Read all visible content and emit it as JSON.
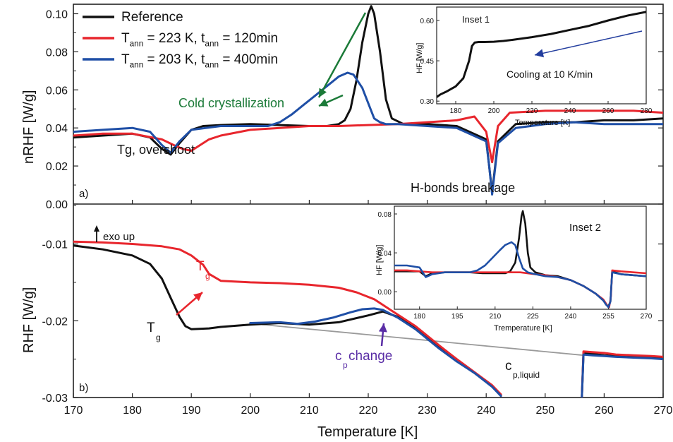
{
  "chart_data": [
    {
      "panel_label": "a)",
      "type": "line",
      "ylabel": "nRHF [W/g]",
      "xlim": [
        170,
        270
      ],
      "ylim": [
        0.0,
        0.105
      ],
      "yticks": [
        "0.00",
        "0.02",
        "0.04",
        "0.06",
        "0.08",
        "0.10"
      ],
      "colors": {
        "Reference": "#111111",
        "red": "#e8262d",
        "blue": "#1f4fa6"
      },
      "legend": {
        "position": "top-left",
        "entries": [
          {
            "color": "#111111",
            "parts": [
              [
                "Reference",
                ""
              ]
            ]
          },
          {
            "color": "#e8262d",
            "parts": [
              [
                "T",
                ""
              ],
              [
                "ann",
                "sub"
              ],
              [
                " = 223 K, t",
                ""
              ],
              [
                "ann",
                "sub"
              ],
              [
                " = 120min",
                ""
              ]
            ]
          },
          {
            "color": "#1f4fa6",
            "parts": [
              [
                "T",
                ""
              ],
              [
                "ann",
                "sub"
              ],
              [
                " = 203 K, t",
                ""
              ],
              [
                "ann",
                "sub"
              ],
              [
                " = 400min",
                ""
              ]
            ]
          }
        ]
      },
      "annotations": {
        "cold": "Cold crystallization",
        "tg_overshoot": "Tg, overshoot",
        "hbonds": "H-bonds breakage"
      },
      "series": [
        {
          "name": "Reference",
          "color": "#111111",
          "x": [
            170,
            175,
            180,
            183,
            185,
            186.5,
            188,
            190,
            192,
            195,
            200,
            205,
            210,
            213,
            215,
            216,
            217,
            218,
            219,
            220,
            220.5,
            221,
            222,
            223,
            224,
            226,
            230,
            235,
            240,
            240.5,
            241,
            242,
            245,
            250,
            255,
            260,
            265,
            270
          ],
          "y": [
            0.035,
            0.036,
            0.037,
            0.035,
            0.029,
            0.026,
            0.032,
            0.039,
            0.041,
            0.0415,
            0.042,
            0.0415,
            0.041,
            0.041,
            0.042,
            0.044,
            0.05,
            0.065,
            0.085,
            0.1,
            0.104,
            0.1,
            0.08,
            0.055,
            0.045,
            0.042,
            0.042,
            0.041,
            0.034,
            0.02,
            0.006,
            0.033,
            0.042,
            0.043,
            0.043,
            0.044,
            0.044,
            0.045
          ]
        },
        {
          "name": "T_ann = 223 K, t_ann = 120min",
          "color": "#e8262d",
          "x": [
            170,
            175,
            180,
            185,
            187,
            188.5,
            190,
            193,
            195,
            200,
            205,
            210,
            215,
            220,
            225,
            230,
            235,
            238,
            240,
            241,
            242,
            244,
            250,
            255,
            260,
            265,
            270
          ],
          "y": [
            0.036,
            0.037,
            0.037,
            0.034,
            0.031,
            0.029,
            0.028,
            0.034,
            0.036,
            0.039,
            0.04,
            0.041,
            0.041,
            0.0415,
            0.042,
            0.043,
            0.044,
            0.046,
            0.038,
            0.022,
            0.041,
            0.048,
            0.049,
            0.049,
            0.049,
            0.049,
            0.048
          ]
        },
        {
          "name": "T_ann = 203 K, t_ann = 400min",
          "color": "#1f4fa6",
          "x": [
            170,
            175,
            180,
            183,
            185,
            186.5,
            188,
            190,
            195,
            200,
            203,
            205,
            207,
            209,
            211,
            213,
            215,
            216.5,
            217.5,
            219,
            220,
            221,
            222,
            223,
            225,
            230,
            235,
            240,
            240.5,
            241,
            242,
            245,
            250,
            255,
            260,
            265,
            270
          ],
          "y": [
            0.038,
            0.039,
            0.04,
            0.038,
            0.031,
            0.027,
            0.033,
            0.039,
            0.041,
            0.041,
            0.041,
            0.043,
            0.047,
            0.052,
            0.057,
            0.062,
            0.067,
            0.069,
            0.068,
            0.061,
            0.053,
            0.045,
            0.043,
            0.042,
            0.042,
            0.041,
            0.04,
            0.033,
            0.02,
            0.005,
            0.032,
            0.04,
            0.042,
            0.043,
            0.042,
            0.042,
            0.042
          ]
        }
      ]
    },
    {
      "panel_label": "b)",
      "type": "line",
      "xlabel": "Temperature [K]",
      "ylabel": "RHF [W/g]",
      "xlim": [
        170,
        270
      ],
      "ylim": [
        -0.03,
        -0.0048
      ],
      "xticks": [
        "170",
        "180",
        "190",
        "200",
        "210",
        "220",
        "230",
        "240",
        "250",
        "260",
        "270"
      ],
      "yticks": [
        "-0.03",
        "-0.02",
        "-0.01"
      ],
      "annotations": {
        "exo": "exo up",
        "tg_red": "T",
        "tg_red_sub": "g",
        "tg_black": "T",
        "tg_black_sub": "g",
        "cp_main": "c",
        "cp_sub": "p",
        "cp_rest": " change",
        "cpl_main": "c",
        "cpl_sub": "p,liquid"
      },
      "baseline": {
        "x": [
          202,
          256.5
        ],
        "y": [
          -0.0205,
          -0.0245
        ]
      },
      "series": [
        {
          "name": "Reference",
          "color": "#111111",
          "x": [
            170,
            175,
            180,
            183,
            185,
            186.5,
            188,
            189,
            190,
            193,
            195,
            200,
            205,
            210,
            215,
            220,
            222.5,
            225,
            228,
            232,
            235,
            238,
            241,
            242.5
          ],
          "y": [
            -0.0102,
            -0.0107,
            -0.0115,
            -0.0126,
            -0.0145,
            -0.017,
            -0.0195,
            -0.0207,
            -0.0211,
            -0.021,
            -0.0208,
            -0.0205,
            -0.0203,
            -0.0205,
            -0.0202,
            -0.0193,
            -0.0188,
            -0.0195,
            -0.021,
            -0.0235,
            -0.0252,
            -0.0268,
            -0.0285,
            -0.0298
          ]
        },
        {
          "name": "T_ann = 223 K, t_ann = 120min",
          "color": "#e8262d",
          "x": [
            170,
            175,
            180,
            185,
            188,
            190,
            192,
            193,
            195,
            200,
            205,
            210,
            215,
            218,
            221,
            224,
            228,
            232,
            235,
            238,
            241,
            242.5
          ],
          "y": [
            -0.0097,
            -0.0098,
            -0.01,
            -0.0103,
            -0.0107,
            -0.0115,
            -0.0127,
            -0.0139,
            -0.0148,
            -0.015,
            -0.0151,
            -0.0153,
            -0.0157,
            -0.0163,
            -0.0172,
            -0.0187,
            -0.0207,
            -0.0232,
            -0.025,
            -0.0267,
            -0.0284,
            -0.0296
          ]
        },
        {
          "name": "T_ann = 203 K, t_ann = 400min",
          "color": "#1f4fa6",
          "x": [
            200,
            205,
            208,
            211,
            214,
            217,
            219,
            221,
            222.5,
            225,
            228,
            232,
            235,
            238,
            241,
            242.5
          ],
          "y": [
            -0.0203,
            -0.0202,
            -0.0204,
            -0.0201,
            -0.0196,
            -0.0189,
            -0.0185,
            -0.0184,
            -0.0186,
            -0.0196,
            -0.0211,
            -0.0236,
            -0.0253,
            -0.0268,
            -0.0286,
            -0.0298
          ]
        },
        {
          "name": "Reference (liquid)",
          "color": "#111111",
          "x": [
            256.2,
            256.5,
            258,
            260,
            262,
            265,
            268,
            270
          ],
          "y": [
            -0.0305,
            -0.0242,
            -0.0243,
            -0.0245,
            -0.0246,
            -0.0247,
            -0.0248,
            -0.0249
          ]
        },
        {
          "name": "T_ann = 223 K (liquid)",
          "color": "#e8262d",
          "x": [
            256.2,
            256.5,
            258,
            260,
            262,
            265,
            268,
            270
          ],
          "y": [
            -0.0305,
            -0.024,
            -0.0241,
            -0.0242,
            -0.0244,
            -0.0245,
            -0.0246,
            -0.0247
          ]
        },
        {
          "name": "T_ann = 203 K (liquid)",
          "color": "#1f4fa6",
          "x": [
            256.2,
            256.5,
            258,
            260,
            262,
            265,
            268,
            270
          ],
          "y": [
            -0.0305,
            -0.0244,
            -0.0245,
            -0.0246,
            -0.0247,
            -0.0248,
            -0.0249,
            -0.025
          ]
        }
      ]
    },
    {
      "panel_label": "Inset 1",
      "type": "line",
      "title": "Inset 1",
      "xlabel": "Temperature [K]",
      "ylabel": "HF [W/g]",
      "xlim": [
        170,
        280
      ],
      "ylim": [
        0.29,
        0.65
      ],
      "xticks": [
        "180",
        "200",
        "220",
        "240",
        "260",
        "280"
      ],
      "yticks": [
        "0.30",
        "0.45",
        "0.60"
      ],
      "annotation": "Cooling at 10 K/min",
      "series": [
        {
          "name": "Reference",
          "color": "#111111",
          "x": [
            170,
            172,
            175,
            180,
            184,
            187,
            188.5,
            190,
            192,
            195,
            200,
            205,
            210,
            220,
            230,
            240,
            250,
            260,
            270,
            280
          ],
          "y": [
            0.315,
            0.325,
            0.335,
            0.355,
            0.385,
            0.45,
            0.505,
            0.518,
            0.52,
            0.52,
            0.521,
            0.524,
            0.528,
            0.538,
            0.55,
            0.565,
            0.58,
            0.6,
            0.618,
            0.632
          ]
        }
      ]
    },
    {
      "panel_label": "Inset 2",
      "type": "line",
      "title": "Inset 2",
      "xlabel": "Tremperature [K]",
      "ylabel": "HF [W/g]",
      "xlim": [
        170,
        270
      ],
      "ylim": [
        -0.018,
        0.088
      ],
      "xticks": [
        "180",
        "195",
        "210",
        "225",
        "240",
        "255",
        "270"
      ],
      "yticks": [
        "0.00",
        "0.04",
        "0.08"
      ],
      "series": [
        {
          "name": "Reference",
          "color": "#111111",
          "x": [
            170,
            175,
            180,
            182.5,
            185,
            190,
            195,
            200,
            205,
            210,
            214,
            216,
            218,
            219.5,
            220.5,
            221,
            222,
            223,
            224,
            226,
            230,
            235,
            240,
            245,
            250,
            253,
            254,
            255,
            255.8,
            256.5,
            260,
            265,
            270
          ],
          "y": [
            0.021,
            0.021,
            0.021,
            0.016,
            0.019,
            0.02,
            0.02,
            0.02,
            0.019,
            0.019,
            0.019,
            0.021,
            0.03,
            0.055,
            0.078,
            0.083,
            0.07,
            0.04,
            0.025,
            0.02,
            0.017,
            0.016,
            0.012,
            0.006,
            -0.002,
            -0.009,
            -0.013,
            -0.015,
            -0.01,
            0.021,
            0.018,
            0.017,
            0.016
          ]
        },
        {
          "name": "T_ann = 223 K, t_ann = 120min",
          "color": "#e8262d",
          "x": [
            170,
            175,
            180,
            185,
            190,
            200,
            210,
            220,
            226,
            230,
            235,
            240,
            245,
            250,
            253,
            254.5,
            255.3,
            256,
            256.5,
            260,
            265,
            270
          ],
          "y": [
            0.022,
            0.022,
            0.021,
            0.02,
            0.02,
            0.02,
            0.02,
            0.02,
            0.018,
            0.017,
            0.015,
            0.012,
            0.006,
            -0.002,
            -0.008,
            -0.014,
            -0.016,
            -0.005,
            0.022,
            0.021,
            0.02,
            0.019
          ]
        },
        {
          "name": "T_ann = 203 K, t_ann = 400min",
          "color": "#1f4fa6",
          "x": [
            170,
            175,
            180,
            182.5,
            185,
            190,
            195,
            200,
            203,
            206,
            209,
            212,
            214,
            216.5,
            218,
            219.5,
            221,
            223,
            226,
            230,
            235,
            240,
            245,
            250,
            253,
            254,
            255,
            255.8,
            256.5,
            260,
            265,
            270
          ],
          "y": [
            0.027,
            0.027,
            0.025,
            0.015,
            0.018,
            0.02,
            0.02,
            0.02,
            0.022,
            0.027,
            0.035,
            0.043,
            0.048,
            0.051,
            0.048,
            0.035,
            0.024,
            0.02,
            0.018,
            0.016,
            0.015,
            0.012,
            0.006,
            -0.002,
            -0.009,
            -0.013,
            -0.016,
            -0.01,
            0.02,
            0.018,
            0.017,
            0.016
          ]
        }
      ]
    }
  ]
}
